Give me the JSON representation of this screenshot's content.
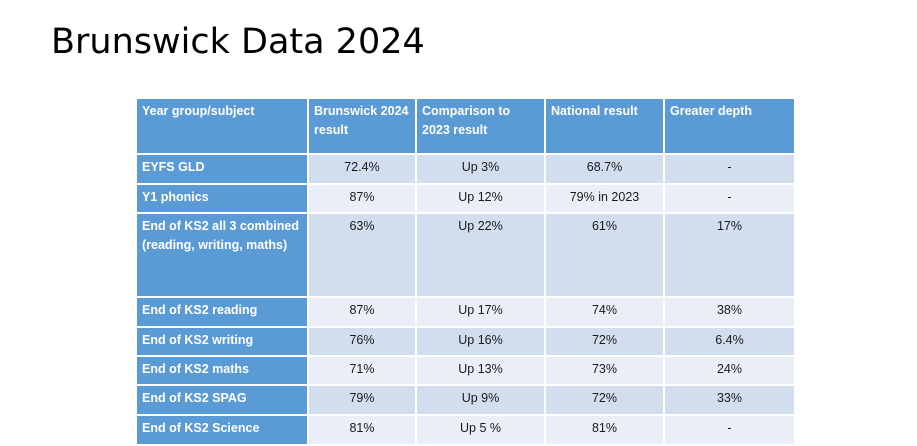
{
  "slide": {
    "title": "Brunswick Data 2024"
  },
  "table": {
    "headers": [
      "Year group/subject",
      "Brunswick 2024 result",
      "Comparison to 2023 result",
      "National result",
      "Greater depth"
    ],
    "rows": [
      {
        "label": "EYFS GLD",
        "cells": [
          "72.4%",
          "Up 3%",
          "68.7%",
          "-"
        ]
      },
      {
        "label": "Y1 phonics",
        "cells": [
          "87%",
          "Up 12%",
          "79% in 2023",
          "-"
        ]
      },
      {
        "label": "End of KS2 all 3 combined (reading, writing, maths)",
        "cells": [
          "63%",
          "Up 22%",
          "61%",
          "17%"
        ]
      },
      {
        "label": "End of KS2 reading",
        "cells": [
          "87%",
          "Up 17%",
          "74%",
          "38%"
        ]
      },
      {
        "label": "End of KS2 writing",
        "cells": [
          "76%",
          "Up 16%",
          "72%",
          "6.4%"
        ]
      },
      {
        "label": "End of KS2 maths",
        "cells": [
          "71%",
          "Up 13%",
          "73%",
          "24%"
        ]
      },
      {
        "label": "End of KS2 SPAG",
        "cells": [
          "79%",
          "Up 9%",
          "72%",
          "33%"
        ]
      },
      {
        "label": "End of KS2 Science",
        "cells": [
          "81%",
          "Up 5 %",
          "81%",
          "-"
        ]
      }
    ]
  }
}
